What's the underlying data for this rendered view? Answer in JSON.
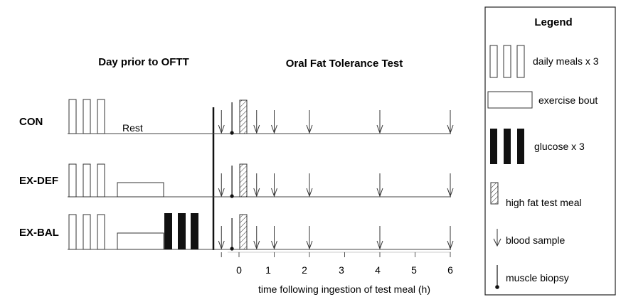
{
  "headers": {
    "day_prior": "Day prior to OFTT",
    "oftt": "Oral Fat Tolerance Test"
  },
  "rows": [
    {
      "label": "CON",
      "rest_label": "Rest",
      "exercise": false,
      "glucose": false
    },
    {
      "label": "EX-DEF",
      "exercise": true,
      "glucose": false
    },
    {
      "label": "EX-BAL",
      "exercise": true,
      "glucose": true
    }
  ],
  "timeline": {
    "ticks": [
      "0",
      "1",
      "2",
      "3",
      "4",
      "5",
      "6"
    ],
    "xlabel": "time following ingestion of test meal (h)",
    "blood_sample_times_h": [
      -0.5,
      0.5,
      1,
      2,
      4,
      6
    ],
    "muscle_biopsy_times_h": [
      -0.2
    ],
    "test_meal_time_h": 0.1
  },
  "legend": {
    "title": "Legend",
    "items": [
      {
        "icon": "daily-meals-icon",
        "label": "daily meals x 3"
      },
      {
        "icon": "exercise-bout-icon",
        "label": "exercise bout"
      },
      {
        "icon": "glucose-icon",
        "label": "glucose x 3"
      },
      {
        "icon": "high-fat-meal-icon",
        "label": "high fat test meal"
      },
      {
        "icon": "blood-sample-icon",
        "label": "blood sample"
      },
      {
        "icon": "muscle-biopsy-icon",
        "label": "muscle biopsy"
      }
    ]
  }
}
